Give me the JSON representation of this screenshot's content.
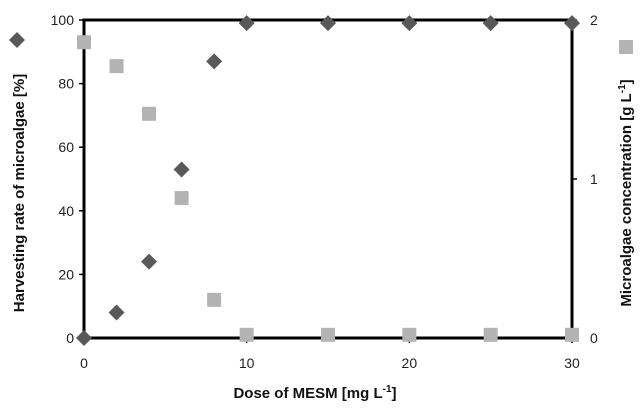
{
  "chart_data": {
    "type": "scatter",
    "xlabel": "Dose of MESM [mg L",
    "xlabel_sup": "-1",
    "xlabel_suffix": "]",
    "ylabel": "Harvesting rate of microalgae [%]",
    "y2label": "Microalgae concentration [g L",
    "y2label_sup": "-1",
    "y2label_suffix": "]",
    "xlim": [
      0,
      30
    ],
    "ylim": [
      0,
      100
    ],
    "y2lim": [
      0,
      2
    ],
    "x_ticks": [
      0,
      10,
      20,
      30
    ],
    "y_ticks": [
      0,
      20,
      40,
      60,
      80,
      100
    ],
    "y2_ticks": [
      0,
      1,
      2
    ],
    "grid": false,
    "legend": "markers beside each y-axis",
    "series": [
      {
        "marker": "diamond",
        "color": "#595959",
        "axis": "left",
        "x": [
          0,
          2,
          4,
          6,
          8,
          10,
          15,
          20,
          25,
          30
        ],
        "values": [
          0,
          8,
          24,
          53,
          87,
          99,
          99,
          99,
          99,
          99
        ]
      },
      {
        "marker": "square",
        "color": "#b3b3b3",
        "axis": "right",
        "x": [
          0,
          2,
          4,
          6,
          8,
          10,
          15,
          20,
          25,
          30
        ],
        "values": [
          1.86,
          1.71,
          1.41,
          0.88,
          0.24,
          0.02,
          0.02,
          0.02,
          0.02,
          0.02
        ]
      }
    ]
  }
}
